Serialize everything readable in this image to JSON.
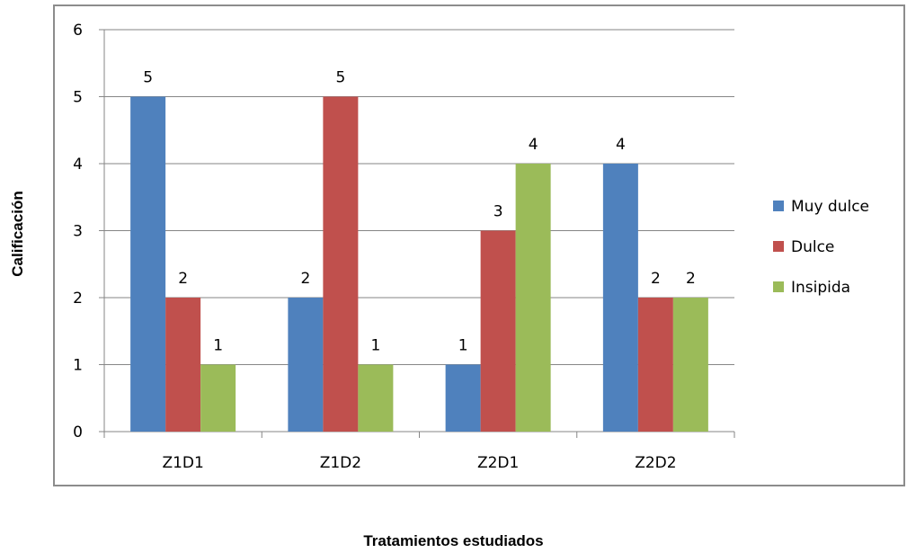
{
  "chart_data": {
    "type": "bar",
    "categories": [
      "Z1D1",
      "Z1D2",
      "Z2D1",
      "Z2D2"
    ],
    "series": [
      {
        "name": "Muy dulce",
        "values": [
          5,
          2,
          1,
          4
        ],
        "color": "#4f81bd"
      },
      {
        "name": "Dulce",
        "values": [
          2,
          5,
          3,
          2
        ],
        "color": "#c0504d"
      },
      {
        "name": "Insipida",
        "values": [
          1,
          1,
          4,
          2
        ],
        "color": "#9bbb59"
      }
    ],
    "title": "",
    "xlabel": "Tratamientos estudiados",
    "ylabel": "Calificación",
    "ylim": [
      0,
      6
    ],
    "yticks": [
      "0",
      "1",
      "2",
      "3",
      "4",
      "5",
      "6"
    ],
    "grid": true,
    "legend": "right",
    "data_labels": true
  }
}
